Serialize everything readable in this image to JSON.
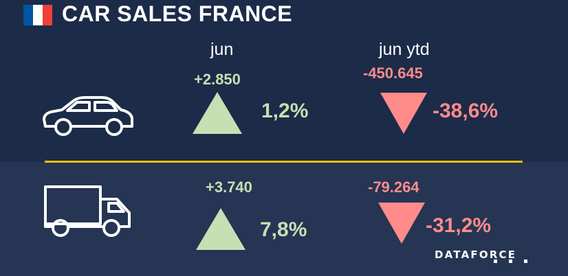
{
  "title": "CAR SALES FRANCE",
  "flag_colors": [
    "#0055a4",
    "#ffffff",
    "#ef4135"
  ],
  "columns": {
    "month": "jun",
    "ytd": "jun ytd"
  },
  "colors": {
    "positive": "#c6e0b4",
    "negative": "#ff8b8b",
    "divider": "#f0c000",
    "background": "#1e2d4a"
  },
  "rows": [
    {
      "icon": "car-icon",
      "month_abs": "+2.850",
      "month_pct": "1,2%",
      "month_trend": "up",
      "ytd_abs": "-450.645",
      "ytd_pct": "-38,6%",
      "ytd_trend": "down"
    },
    {
      "icon": "truck-icon",
      "month_abs": "+3.740",
      "month_pct": "7,8%",
      "month_trend": "up",
      "ytd_abs": "-79.264",
      "ytd_pct": "-31,2%",
      "ytd_trend": "down"
    }
  ],
  "logo_text": "DATAFORCE"
}
